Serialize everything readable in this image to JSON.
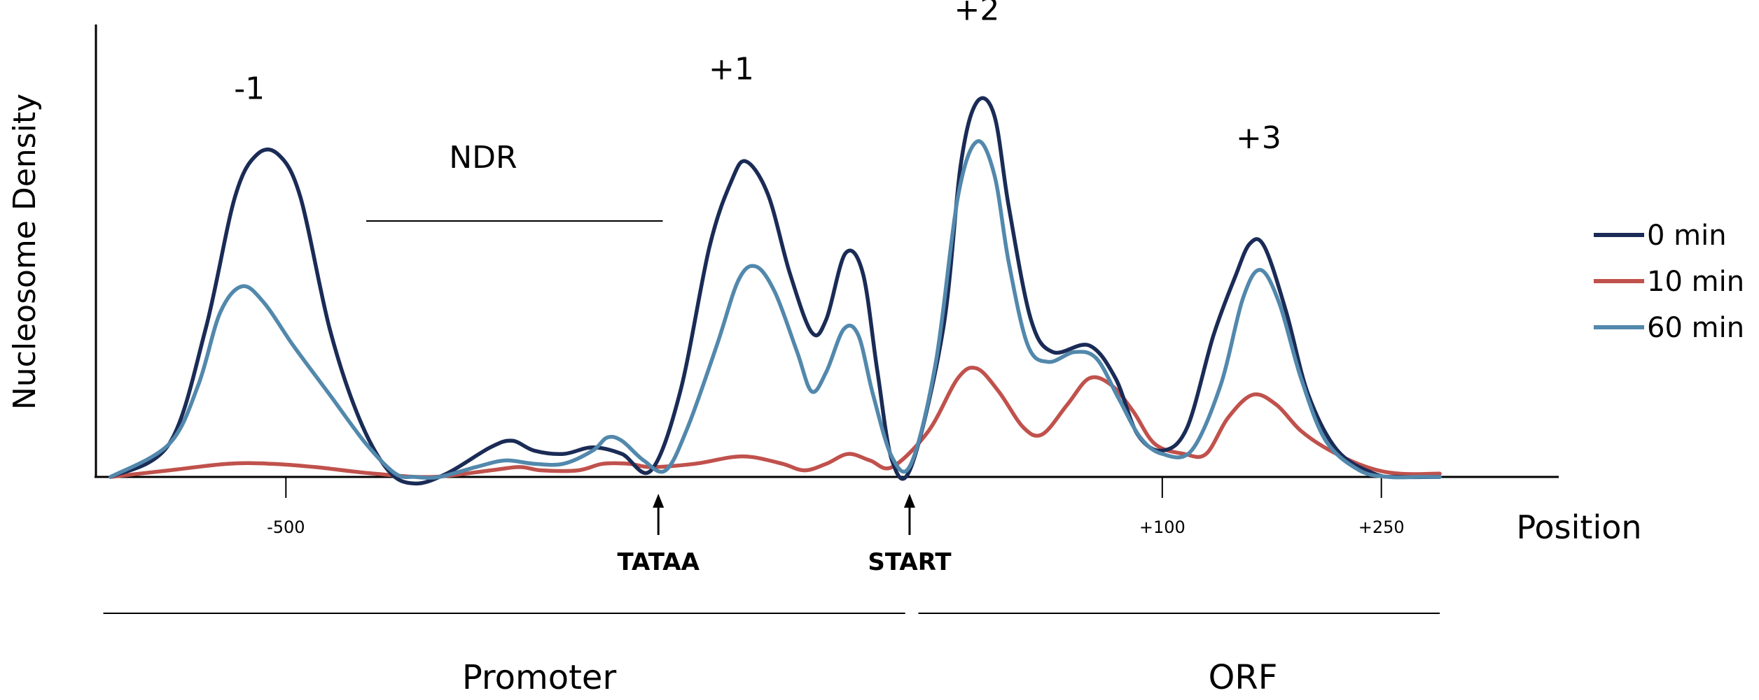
{
  "chart_data": {
    "type": "line",
    "title": "",
    "xlabel": "Position",
    "ylabel": "Nucleosome Density",
    "x_ticks": [
      {
        "x": -500,
        "label": "-500"
      },
      {
        "x": 100,
        "label": "+100"
      },
      {
        "x": 250,
        "label": "+250"
      }
    ],
    "xlim": [
      -620,
      370
    ],
    "ylim": [
      0,
      1
    ],
    "grid": false,
    "legend_position": "right",
    "series": [
      {
        "name": "0 min",
        "color": "#1a2b56",
        "points": [
          [
            -620,
            0.0
          ],
          [
            -580,
            0.1
          ],
          [
            -555,
            0.45
          ],
          [
            -535,
            0.85
          ],
          [
            -520,
            0.98
          ],
          [
            -505,
            0.98
          ],
          [
            -490,
            0.85
          ],
          [
            -470,
            0.45
          ],
          [
            -450,
            0.18
          ],
          [
            -430,
            0.02
          ],
          [
            -412,
            -0.02
          ],
          [
            -390,
            0.01
          ],
          [
            -360,
            0.09
          ],
          [
            -345,
            0.11
          ],
          [
            -330,
            0.08
          ],
          [
            -310,
            0.07
          ],
          [
            -290,
            0.09
          ],
          [
            -270,
            0.07
          ],
          [
            -250,
            0.02
          ],
          [
            -230,
            0.26
          ],
          [
            -210,
            0.7
          ],
          [
            -195,
            0.9
          ],
          [
            -185,
            0.96
          ],
          [
            -170,
            0.86
          ],
          [
            -155,
            0.62
          ],
          [
            -140,
            0.44
          ],
          [
            -130,
            0.48
          ],
          [
            -117,
            0.68
          ],
          [
            -105,
            0.62
          ],
          [
            -95,
            0.32
          ],
          [
            -85,
            0.05
          ],
          [
            -72,
            0.03
          ],
          [
            -50,
            0.45
          ],
          [
            -38,
            0.95
          ],
          [
            -27,
            1.14
          ],
          [
            -15,
            1.1
          ],
          [
            -5,
            0.82
          ],
          [
            10,
            0.48
          ],
          [
            25,
            0.38
          ],
          [
            50,
            0.4
          ],
          [
            68,
            0.3
          ],
          [
            83,
            0.13
          ],
          [
            100,
            0.08
          ],
          [
            117,
            0.15
          ],
          [
            135,
            0.43
          ],
          [
            150,
            0.61
          ],
          [
            160,
            0.71
          ],
          [
            170,
            0.7
          ],
          [
            185,
            0.5
          ],
          [
            200,
            0.25
          ],
          [
            220,
            0.08
          ],
          [
            245,
            0.01
          ],
          [
            262,
            0.0
          ],
          [
            290,
            0.0
          ]
        ]
      },
      {
        "name": "10 min",
        "color": "#c0514c",
        "points": [
          [
            -620,
            0.0
          ],
          [
            -580,
            0.02
          ],
          [
            -540,
            0.04
          ],
          [
            -510,
            0.04
          ],
          [
            -480,
            0.03
          ],
          [
            -440,
            0.01
          ],
          [
            -400,
            0.0
          ],
          [
            -360,
            0.02
          ],
          [
            -340,
            0.03
          ],
          [
            -325,
            0.02
          ],
          [
            -300,
            0.02
          ],
          [
            -283,
            0.04
          ],
          [
            -265,
            0.04
          ],
          [
            -250,
            0.03
          ],
          [
            -220,
            0.04
          ],
          [
            -195,
            0.06
          ],
          [
            -180,
            0.06
          ],
          [
            -160,
            0.04
          ],
          [
            -145,
            0.02
          ],
          [
            -130,
            0.04
          ],
          [
            -115,
            0.07
          ],
          [
            -100,
            0.05
          ],
          [
            -85,
            0.03
          ],
          [
            -60,
            0.14
          ],
          [
            -40,
            0.3
          ],
          [
            -27,
            0.33
          ],
          [
            -12,
            0.26
          ],
          [
            5,
            0.15
          ],
          [
            18,
            0.13
          ],
          [
            35,
            0.22
          ],
          [
            50,
            0.3
          ],
          [
            65,
            0.28
          ],
          [
            80,
            0.2
          ],
          [
            95,
            0.1
          ],
          [
            115,
            0.07
          ],
          [
            130,
            0.07
          ],
          [
            145,
            0.18
          ],
          [
            162,
            0.25
          ],
          [
            178,
            0.22
          ],
          [
            195,
            0.14
          ],
          [
            215,
            0.08
          ],
          [
            240,
            0.03
          ],
          [
            262,
            0.01
          ],
          [
            290,
            0.01
          ]
        ]
      },
      {
        "name": "60 min",
        "color": "#5288ac",
        "points": [
          [
            -620,
            0.0
          ],
          [
            -580,
            0.1
          ],
          [
            -560,
            0.28
          ],
          [
            -545,
            0.5
          ],
          [
            -530,
            0.58
          ],
          [
            -515,
            0.53
          ],
          [
            -495,
            0.4
          ],
          [
            -470,
            0.25
          ],
          [
            -445,
            0.1
          ],
          [
            -425,
            0.01
          ],
          [
            -412,
            0.0
          ],
          [
            -395,
            0.0
          ],
          [
            -370,
            0.03
          ],
          [
            -350,
            0.05
          ],
          [
            -330,
            0.04
          ],
          [
            -310,
            0.04
          ],
          [
            -290,
            0.08
          ],
          [
            -280,
            0.12
          ],
          [
            -270,
            0.11
          ],
          [
            -255,
            0.05
          ],
          [
            -240,
            0.02
          ],
          [
            -225,
            0.15
          ],
          [
            -205,
            0.4
          ],
          [
            -190,
            0.6
          ],
          [
            -178,
            0.64
          ],
          [
            -165,
            0.56
          ],
          [
            -150,
            0.38
          ],
          [
            -140,
            0.26
          ],
          [
            -130,
            0.32
          ],
          [
            -118,
            0.45
          ],
          [
            -108,
            0.43
          ],
          [
            -98,
            0.25
          ],
          [
            -85,
            0.06
          ],
          [
            -72,
            0.04
          ],
          [
            -55,
            0.35
          ],
          [
            -40,
            0.85
          ],
          [
            -27,
            1.02
          ],
          [
            -15,
            0.92
          ],
          [
            -5,
            0.65
          ],
          [
            8,
            0.4
          ],
          [
            22,
            0.35
          ],
          [
            40,
            0.38
          ],
          [
            55,
            0.36
          ],
          [
            70,
            0.24
          ],
          [
            85,
            0.12
          ],
          [
            100,
            0.07
          ],
          [
            120,
            0.08
          ],
          [
            140,
            0.28
          ],
          [
            155,
            0.54
          ],
          [
            167,
            0.63
          ],
          [
            180,
            0.53
          ],
          [
            195,
            0.3
          ],
          [
            212,
            0.11
          ],
          [
            235,
            0.02
          ],
          [
            255,
            0.0
          ],
          [
            275,
            0.0
          ],
          [
            290,
            0.0
          ]
        ]
      }
    ],
    "annotations": [
      {
        "text": "-1",
        "x": -525,
        "y": 1.15
      },
      {
        "text": "NDR",
        "x": -365,
        "y": 0.94
      },
      {
        "text": "+1",
        "x": -195,
        "y": 1.21
      },
      {
        "text": "+2",
        "x": -27,
        "y": 1.39
      },
      {
        "text": "+3",
        "x": 166,
        "y": 1.0
      }
    ],
    "ndr_span": [
      -445,
      -242
    ],
    "markers": [
      {
        "text": "TATAA",
        "x": -245
      },
      {
        "text": "START",
        "x": -73
      }
    ],
    "regions": [
      {
        "text": "Promoter",
        "from": -625,
        "to": -76
      },
      {
        "text": "ORF",
        "from": -67,
        "to": 290
      }
    ]
  }
}
